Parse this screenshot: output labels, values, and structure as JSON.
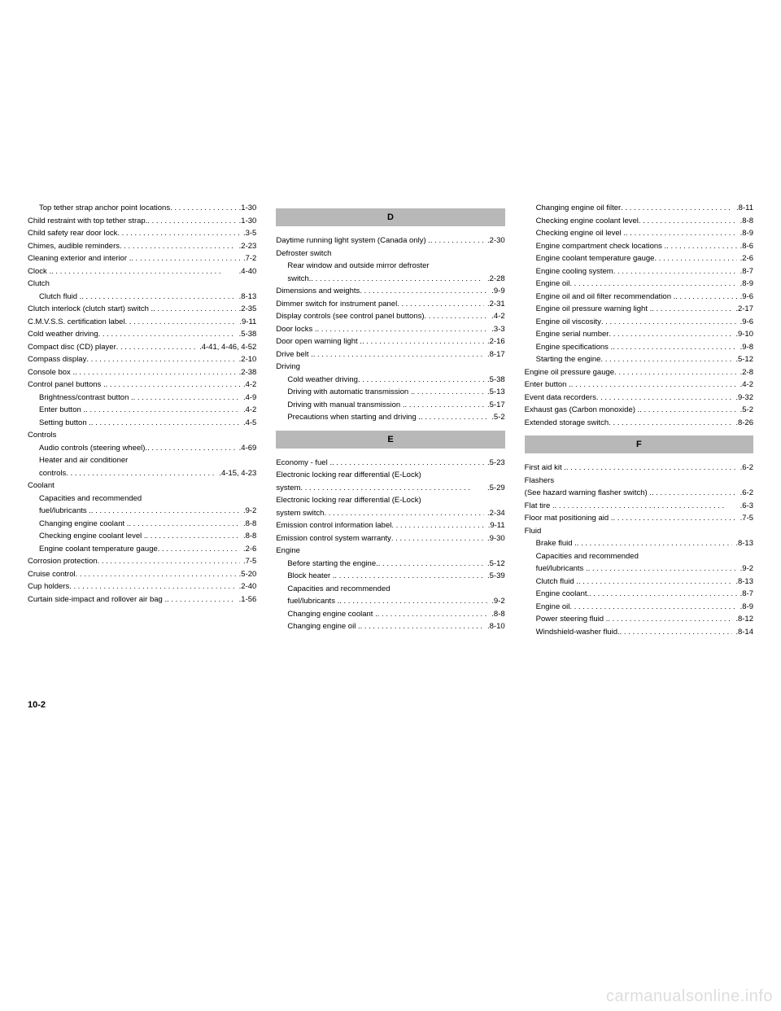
{
  "page_number": "10-2",
  "watermark": "carmanualsonline.info",
  "text_color": "#000000",
  "heading_bg": "#b8b8b8",
  "col1": {
    "items": [
      {
        "label": "Top tether strap anchor point locations",
        "page": ".1-30",
        "indent": true
      },
      {
        "label": "Child restraint with top tether strap.",
        "page": ".1-30"
      },
      {
        "label": "Child safety rear door lock",
        "page": ".3-5"
      },
      {
        "label": "Chimes, audible reminders",
        "page": ".2-23"
      },
      {
        "label": "Cleaning exterior and interior .",
        "page": ".7-2"
      },
      {
        "label": "Clock .",
        "page": ".4-40"
      },
      {
        "label": "Clutch",
        "plain": true
      },
      {
        "label": "Clutch fluid .",
        "page": ".8-13",
        "indent": true
      },
      {
        "label": "Clutch interlock (clutch start) switch .",
        "page": ".2-35"
      },
      {
        "label": "C.M.V.S.S. certification label",
        "page": ".9-11"
      },
      {
        "label": "Cold weather driving",
        "page": ".5-38"
      },
      {
        "label": "Compact disc (CD) player",
        "page": ".4-41, 4-46, 4-52"
      },
      {
        "label": "Compass display",
        "page": ".2-10"
      },
      {
        "label": "Console box .",
        "page": ".2-38"
      },
      {
        "label": "Control panel buttons .",
        "page": ".4-2"
      },
      {
        "label": "Brightness/contrast button .",
        "page": ".4-9",
        "indent": true
      },
      {
        "label": "Enter button .",
        "page": ".4-2",
        "indent": true
      },
      {
        "label": "Setting button .",
        "page": ".4-5",
        "indent": true
      },
      {
        "label": "Controls",
        "plain": true
      },
      {
        "label": "Audio controls (steering wheel).",
        "page": ".4-69",
        "indent": true
      },
      {
        "label": "Heater and air conditioner",
        "plain": true,
        "indent": true
      },
      {
        "label": "controls",
        "page": ".4-15, 4-23",
        "indent": true
      },
      {
        "label": "Coolant",
        "plain": true
      },
      {
        "label": "Capacities and recommended",
        "plain": true,
        "indent": true
      },
      {
        "label": "fuel/lubricants .",
        "page": ".9-2",
        "indent": true
      },
      {
        "label": "Changing engine coolant .",
        "page": ".8-8",
        "indent": true
      },
      {
        "label": "Checking engine coolant level .",
        "page": ".8-8",
        "indent": true
      },
      {
        "label": "Engine coolant temperature gauge",
        "page": ".2-6",
        "indent": true
      },
      {
        "label": "Corrosion protection",
        "page": ".7-5"
      },
      {
        "label": "Cruise control",
        "page": ".5-20"
      },
      {
        "label": "Cup holders",
        "page": ".2-40"
      },
      {
        "label": "Curtain side-impact and rollover air bag .",
        "page": ".1-56"
      }
    ]
  },
  "col2": {
    "sections": [
      {
        "heading": "D",
        "items": [
          {
            "label": "Daytime running light system (Canada only) .",
            "page": ".2-30"
          },
          {
            "label": "Defroster switch",
            "plain": true
          },
          {
            "label": "Rear window and outside mirror defroster",
            "plain": true,
            "indent": true
          },
          {
            "label": "switch.",
            "page": ".2-28",
            "indent": true
          },
          {
            "label": "Dimensions and weights",
            "page": ".9-9"
          },
          {
            "label": "Dimmer switch for instrument panel",
            "page": ".2-31"
          },
          {
            "label": "Display controls (see control panel buttons)",
            "page": ".4-2"
          },
          {
            "label": "Door locks .",
            "page": ".3-3"
          },
          {
            "label": "Door open warning light .",
            "page": ".2-16"
          },
          {
            "label": "Drive belt .",
            "page": ".8-17"
          },
          {
            "label": "Driving",
            "plain": true
          },
          {
            "label": "Cold weather driving",
            "page": ".5-38",
            "indent": true
          },
          {
            "label": "Driving with automatic transmission .",
            "page": ".5-13",
            "indent": true
          },
          {
            "label": "Driving with manual transmission .",
            "page": ".5-17",
            "indent": true
          },
          {
            "label": "Precautions when starting and driving .",
            "page": ".5-2",
            "indent": true
          }
        ]
      },
      {
        "heading": "E",
        "items": [
          {
            "label": "Economy - fuel .",
            "page": ".5-23"
          },
          {
            "label": "Electronic locking rear differential (E-Lock)",
            "plain": true
          },
          {
            "label": "system",
            "page": ".5-29"
          },
          {
            "label": "Electronic locking rear differential (E-Lock)",
            "plain": true
          },
          {
            "label": "system switch",
            "page": ".2-34"
          },
          {
            "label": "Emission control information label",
            "page": ".9-11"
          },
          {
            "label": "Emission control system warranty",
            "page": ".9-30"
          },
          {
            "label": "Engine",
            "plain": true
          },
          {
            "label": "Before starting the engine.",
            "page": ".5-12",
            "indent": true
          },
          {
            "label": "Block heater .",
            "page": ".5-39",
            "indent": true
          },
          {
            "label": "Capacities and recommended",
            "plain": true,
            "indent": true
          },
          {
            "label": "fuel/lubricants .",
            "page": ".9-2",
            "indent": true
          },
          {
            "label": "Changing engine coolant .",
            "page": ".8-8",
            "indent": true
          },
          {
            "label": "Changing engine oil .",
            "page": ".8-10",
            "indent": true
          }
        ]
      }
    ]
  },
  "col3": {
    "preitems": [
      {
        "label": "Changing engine oil filter",
        "page": ".8-11",
        "indent": true
      },
      {
        "label": "Checking engine coolant level",
        "page": ".8-8",
        "indent": true
      },
      {
        "label": "Checking engine oil level .",
        "page": ".8-9",
        "indent": true
      },
      {
        "label": "Engine compartment check locations .",
        "page": ".8-6",
        "indent": true
      },
      {
        "label": "Engine coolant temperature gauge",
        "page": ".2-6",
        "indent": true
      },
      {
        "label": "Engine cooling system",
        "page": ".8-7",
        "indent": true
      },
      {
        "label": "Engine oil",
        "page": ".8-9",
        "indent": true
      },
      {
        "label": "Engine oil and oil filter recommendation .",
        "page": ".9-6",
        "indent": true
      },
      {
        "label": "Engine oil pressure warning light .",
        "page": ".2-17",
        "indent": true
      },
      {
        "label": "Engine oil viscosity",
        "page": ".9-6",
        "indent": true
      },
      {
        "label": "Engine serial number",
        "page": ".9-10",
        "indent": true
      },
      {
        "label": "Engine specifications .",
        "page": ".9-8",
        "indent": true
      },
      {
        "label": "Starting the engine",
        "page": ".5-12",
        "indent": true
      },
      {
        "label": "Engine oil pressure gauge",
        "page": ".2-8"
      },
      {
        "label": "Enter button .",
        "page": ".4-2"
      },
      {
        "label": "Event data recorders",
        "page": ".9-32"
      },
      {
        "label": "Exhaust gas (Carbon monoxide) .",
        "page": ".5-2"
      },
      {
        "label": "Extended storage switch",
        "page": ".8-26"
      }
    ],
    "sections": [
      {
        "heading": "F",
        "items": [
          {
            "label": "First aid kit .",
            "page": ".6-2"
          },
          {
            "label": "Flashers",
            "plain": true
          },
          {
            "label": "(See hazard warning flasher switch) .",
            "page": ".6-2"
          },
          {
            "label": "Flat tire .",
            "page": ".6-3"
          },
          {
            "label": "Floor mat positioning aid .",
            "page": ".7-5"
          },
          {
            "label": "Fluid",
            "plain": true
          },
          {
            "label": "Brake fluid .",
            "page": ".8-13",
            "indent": true
          },
          {
            "label": "Capacities and recommended",
            "plain": true,
            "indent": true
          },
          {
            "label": "fuel/lubricants .",
            "page": ".9-2",
            "indent": true
          },
          {
            "label": "Clutch fluid .",
            "page": ".8-13",
            "indent": true
          },
          {
            "label": "Engine coolant.",
            "page": ".8-7",
            "indent": true
          },
          {
            "label": "Engine oil",
            "page": ".8-9",
            "indent": true
          },
          {
            "label": "Power steering fluid .",
            "page": ".8-12",
            "indent": true
          },
          {
            "label": "Windshield-washer fluid.",
            "page": ".8-14",
            "indent": true
          }
        ]
      }
    ]
  }
}
